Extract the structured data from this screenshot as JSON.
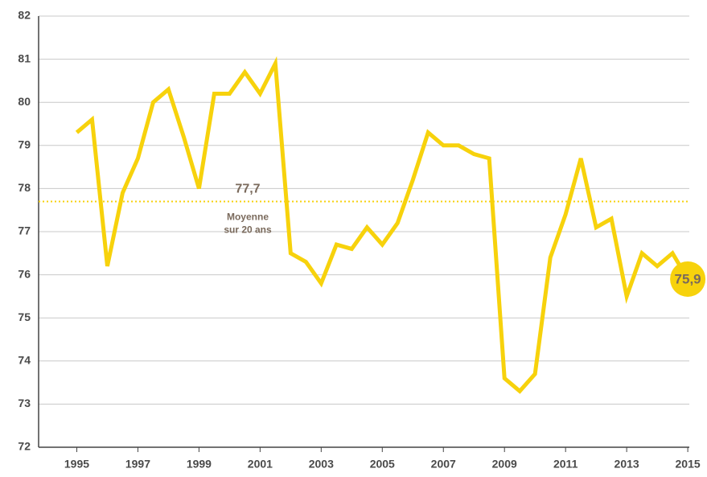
{
  "chart_data": {
    "type": "line",
    "x": [
      1995,
      1995.5,
      1996,
      1996.5,
      1997,
      1997.5,
      1998,
      1998.5,
      1999,
      1999.5,
      2000,
      2000.5,
      2001,
      2001.5,
      2002,
      2002.5,
      2003,
      2003.5,
      2004,
      2004.5,
      2005,
      2005.5,
      2006,
      2006.5,
      2007,
      2007.5,
      2008,
      2008.5,
      2009,
      2009.5,
      2010,
      2010.5,
      2011,
      2011.5,
      2012,
      2012.5,
      2013,
      2013.5,
      2014,
      2014.5,
      2015
    ],
    "series": [
      {
        "color": "#f7d20c",
        "values": [
          79.3,
          79.6,
          76.2,
          77.9,
          78.7,
          80.0,
          80.3,
          79.2,
          78.0,
          80.2,
          80.2,
          80.7,
          80.2,
          80.9,
          76.5,
          76.3,
          75.8,
          76.7,
          76.6,
          77.1,
          76.7,
          77.2,
          78.2,
          79.3,
          79.0,
          79.0,
          78.8,
          78.7,
          73.6,
          73.3,
          73.7,
          76.4,
          77.4,
          78.7,
          77.1,
          77.3,
          75.5,
          76.5,
          76.2,
          76.5,
          75.9
        ]
      }
    ],
    "xlim": [
      1993.75,
      2015.05
    ],
    "xticks": [
      1995,
      1997,
      1999,
      2001,
      2003,
      2005,
      2007,
      2009,
      2011,
      2013,
      2015
    ],
    "ylim": [
      72,
      82
    ],
    "yticks": [
      72,
      73,
      74,
      75,
      76,
      77,
      78,
      79,
      80,
      81,
      82
    ],
    "grid": true,
    "average": {
      "value": 77.7,
      "label": "77,7",
      "text": [
        "Moyenne",
        "sur 20 ans"
      ]
    },
    "end_label": {
      "value": 75.9,
      "label": "75,9"
    }
  }
}
